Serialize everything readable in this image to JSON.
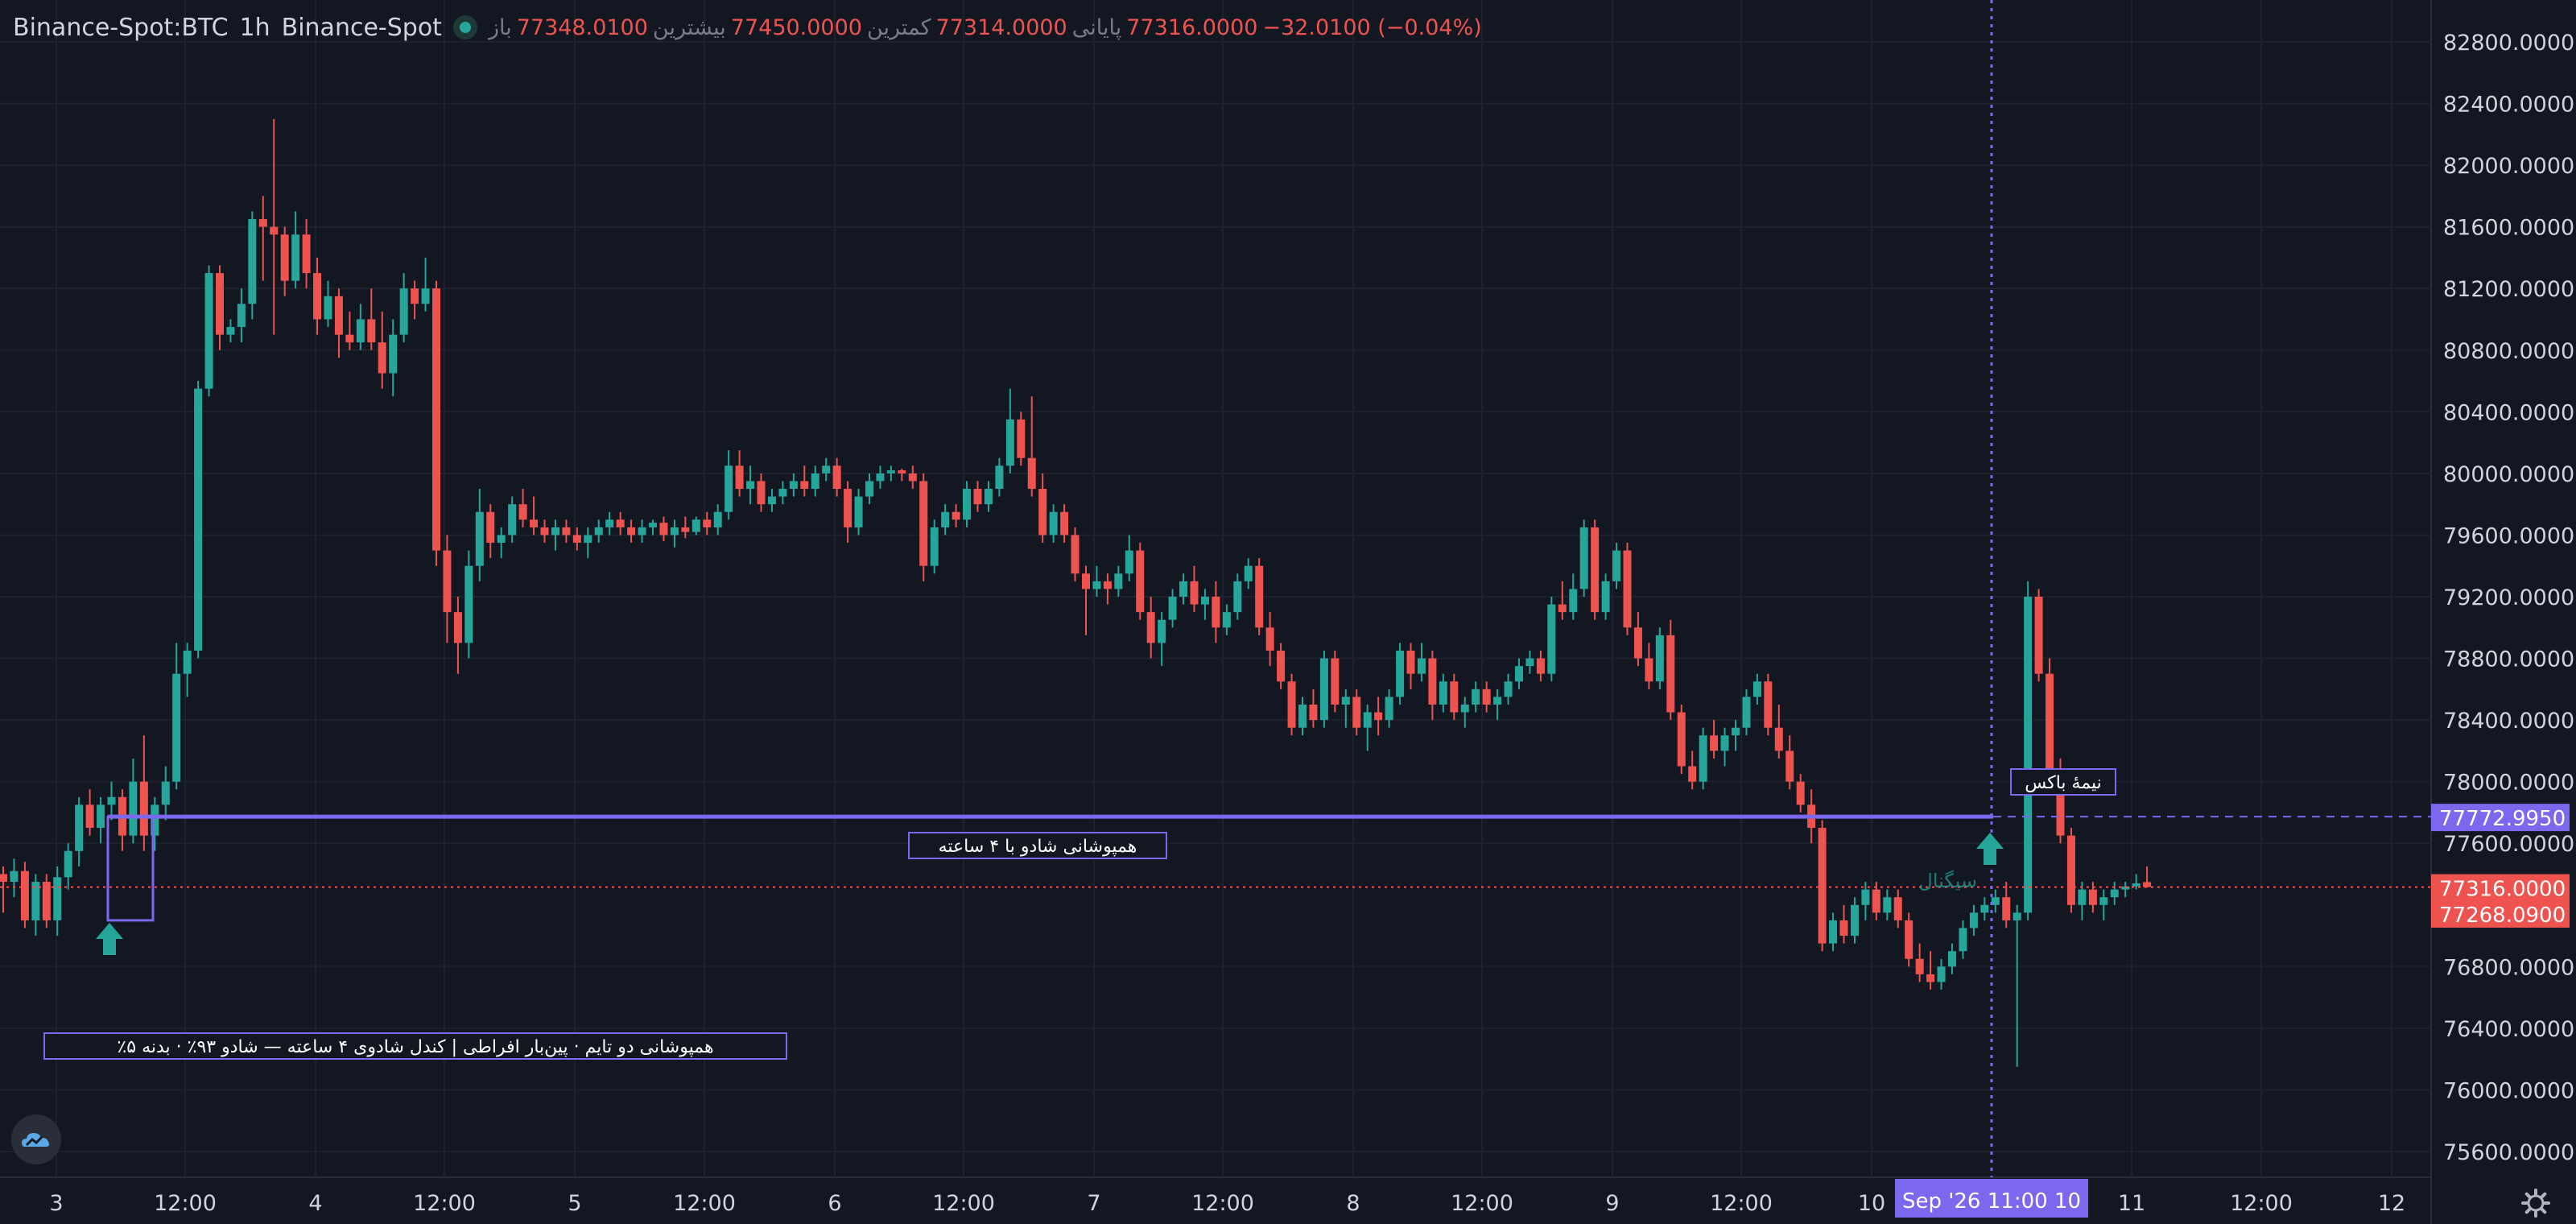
{
  "header": {
    "symbol": "Binance-Spot:BTC",
    "interval": "1h",
    "exchange": "Binance-Spot",
    "ohlc": {
      "open_label": "باز",
      "open": "77348.0100",
      "high_label": "بیشترین",
      "high": "77450.0000",
      "low_label": "کمترین",
      "low": "77314.0000",
      "close_label": "پایانی",
      "close": "77316.0000",
      "change": "−32.0100 (−0.04%)"
    }
  },
  "price_axis": {
    "ticks": [
      "82800.0000",
      "82400.0000",
      "82000.0000",
      "81600.0000",
      "81200.0000",
      "80800.0000",
      "80400.0000",
      "80000.0000",
      "79600.0000",
      "79200.0000",
      "78800.0000",
      "78400.0000",
      "78000.0000",
      "77600.0000",
      "76800.0000",
      "76400.0000",
      "76000.0000",
      "75600.0000"
    ],
    "level_tag": "77772.9950",
    "close_tag": "77316.0000",
    "low_tag": "77268.0900"
  },
  "time_axis": {
    "labels": [
      "3",
      "12:00",
      "4",
      "12:00",
      "5",
      "12:00",
      "6",
      "12:00",
      "7",
      "12:00",
      "8",
      "12:00",
      "9",
      "12:00",
      "10",
      "11",
      "12:00",
      "12"
    ],
    "crosshair_label": "Sep '26   11:00 10"
  },
  "annotations": {
    "half_box": "نیمهٔ باکس",
    "overlap_line": "همپوشانی شادو با ۴ ساعته",
    "bottom_note": "٪همپوشانی دو تایم · پین‌بار افراطی | کندل شادوی ۴ ساعته — شادو ۹۳٪ · بدنه ۵",
    "arrow_label": "سیگنال"
  },
  "colors": {
    "background": "#131722",
    "grid": "#1e222d",
    "up": "#26a69a",
    "down": "#ef5350",
    "level_line": "#7b68ee",
    "text": "#d1d4dc",
    "muted": "#787b86"
  },
  "icons": {
    "logo": "cloud-logo-icon",
    "settings": "gear-icon",
    "signal": "arrow-up-icon"
  },
  "chart_data": {
    "type": "candlestick",
    "title": "",
    "xlabel": "",
    "ylabel": "",
    "ylim": [
      75400,
      83000
    ],
    "interval": "1h",
    "x_start": "2026-09-02 21:00",
    "level": 77772.995,
    "last_close": 77316,
    "grid": true,
    "ohlc": [
      [
        77400,
        77450,
        77150,
        77350
      ],
      [
        77350,
        77500,
        77250,
        77420
      ],
      [
        77420,
        77480,
        77050,
        77100
      ],
      [
        77100,
        77400,
        77000,
        77350
      ],
      [
        77350,
        77400,
        77050,
        77100
      ],
      [
        77100,
        77450,
        77000,
        77380
      ],
      [
        77380,
        77600,
        77300,
        77550
      ],
      [
        77550,
        77900,
        77450,
        77850
      ],
      [
        77850,
        77950,
        77650,
        77700
      ],
      [
        77700,
        77900,
        77600,
        77850
      ],
      [
        77850,
        78000,
        77750,
        77900
      ],
      [
        77900,
        77950,
        77550,
        77650
      ],
      [
        77650,
        78150,
        77600,
        78000
      ],
      [
        78000,
        78300,
        77550,
        77650
      ],
      [
        77650,
        77900,
        77550,
        77850
      ],
      [
        77850,
        78100,
        77750,
        78000
      ],
      [
        78000,
        78900,
        77950,
        78700
      ],
      [
        78700,
        78900,
        78550,
        78850
      ],
      [
        78850,
        80600,
        78800,
        80550
      ],
      [
        80550,
        81350,
        80500,
        81300
      ],
      [
        81300,
        81350,
        80800,
        80900
      ],
      [
        80900,
        81000,
        80850,
        80950
      ],
      [
        80950,
        81200,
        80850,
        81100
      ],
      [
        81100,
        81700,
        81000,
        81650
      ],
      [
        81650,
        81800,
        81250,
        81600
      ],
      [
        81600,
        82300,
        80900,
        81550
      ],
      [
        81550,
        81600,
        81150,
        81250
      ],
      [
        81250,
        81700,
        81200,
        81550
      ],
      [
        81550,
        81650,
        81200,
        81300
      ],
      [
        81300,
        81400,
        80900,
        81000
      ],
      [
        81000,
        81250,
        80950,
        81150
      ],
      [
        81150,
        81200,
        80750,
        80900
      ],
      [
        80900,
        81050,
        80800,
        80850
      ],
      [
        80850,
        81100,
        80800,
        81000
      ],
      [
        81000,
        81200,
        80800,
        80850
      ],
      [
        80850,
        81050,
        80550,
        80650
      ],
      [
        80650,
        81000,
        80500,
        80900
      ],
      [
        80900,
        81300,
        80850,
        81200
      ],
      [
        81200,
        81250,
        81000,
        81100
      ],
      [
        81100,
        81400,
        81050,
        81200
      ],
      [
        81200,
        81250,
        79400,
        79500
      ],
      [
        79500,
        79600,
        78900,
        79100
      ],
      [
        79100,
        79200,
        78700,
        78900
      ],
      [
        78900,
        79500,
        78800,
        79400
      ],
      [
        79400,
        79900,
        79300,
        79750
      ],
      [
        79750,
        79800,
        79450,
        79550
      ],
      [
        79550,
        79650,
        79450,
        79600
      ],
      [
        79600,
        79850,
        79550,
        79800
      ],
      [
        79800,
        79900,
        79650,
        79700
      ],
      [
        79700,
        79850,
        79600,
        79650
      ],
      [
        79650,
        79700,
        79550,
        79600
      ],
      [
        79600,
        79700,
        79500,
        79650
      ],
      [
        79650,
        79700,
        79550,
        79600
      ],
      [
        79600,
        79650,
        79500,
        79550
      ],
      [
        79550,
        79650,
        79450,
        79600
      ],
      [
        79600,
        79700,
        79550,
        79650
      ],
      [
        79650,
        79750,
        79600,
        79700
      ],
      [
        79700,
        79750,
        79600,
        79650
      ],
      [
        79650,
        79700,
        79550,
        79600
      ],
      [
        79600,
        79700,
        79550,
        79650
      ],
      [
        79650,
        79700,
        79600,
        79680
      ],
      [
        79680,
        79720,
        79560,
        79600
      ],
      [
        79600,
        79700,
        79520,
        79650
      ],
      [
        79650,
        79720,
        79580,
        79620
      ],
      [
        79620,
        79720,
        79600,
        79700
      ],
      [
        79700,
        79750,
        79600,
        79650
      ],
      [
        79650,
        79800,
        79600,
        79750
      ],
      [
        79750,
        80150,
        79700,
        80050
      ],
      [
        80050,
        80150,
        79850,
        79900
      ],
      [
        79900,
        80050,
        79800,
        79950
      ],
      [
        79950,
        80000,
        79750,
        79800
      ],
      [
        79800,
        79900,
        79750,
        79850
      ],
      [
        79850,
        79950,
        79800,
        79900
      ],
      [
        79900,
        80000,
        79850,
        79950
      ],
      [
        79950,
        80050,
        79850,
        79900
      ],
      [
        79900,
        80050,
        79850,
        80000
      ],
      [
        80000,
        80100,
        79950,
        80050
      ],
      [
        80050,
        80100,
        79850,
        79900
      ],
      [
        79900,
        79950,
        79550,
        79650
      ],
      [
        79650,
        79900,
        79600,
        79850
      ],
      [
        79850,
        80000,
        79800,
        79950
      ],
      [
        79950,
        80050,
        79900,
        80000
      ],
      [
        80000,
        80050,
        79950,
        80020
      ],
      [
        80020,
        80030,
        79950,
        80000
      ],
      [
        80000,
        80050,
        79900,
        79950
      ],
      [
        79950,
        80000,
        79300,
        79400
      ],
      [
        79400,
        79700,
        79350,
        79650
      ],
      [
        79650,
        79800,
        79600,
        79750
      ],
      [
        79750,
        79800,
        79650,
        79700
      ],
      [
        79700,
        79950,
        79650,
        79900
      ],
      [
        79900,
        79950,
        79750,
        79800
      ],
      [
        79800,
        79950,
        79750,
        79900
      ],
      [
        79900,
        80100,
        79850,
        80050
      ],
      [
        80050,
        80550,
        80000,
        80350
      ],
      [
        80350,
        80400,
        80050,
        80100
      ],
      [
        80100,
        80500,
        79850,
        79900
      ],
      [
        79900,
        80000,
        79550,
        79600
      ],
      [
        79600,
        79800,
        79550,
        79750
      ],
      [
        79750,
        79800,
        79550,
        79600
      ],
      [
        79600,
        79650,
        79300,
        79350
      ],
      [
        79350,
        79400,
        78950,
        79250
      ],
      [
        79250,
        79400,
        79200,
        79300
      ],
      [
        79300,
        79350,
        79150,
        79250
      ],
      [
        79250,
        79400,
        79200,
        79350
      ],
      [
        79350,
        79600,
        79300,
        79500
      ],
      [
        79500,
        79550,
        79050,
        79100
      ],
      [
        79100,
        79200,
        78800,
        78900
      ],
      [
        78900,
        79100,
        78750,
        79050
      ],
      [
        79050,
        79250,
        79000,
        79200
      ],
      [
        79200,
        79350,
        79150,
        79300
      ],
      [
        79300,
        79400,
        79100,
        79150
      ],
      [
        79150,
        79250,
        79050,
        79200
      ],
      [
        79200,
        79300,
        78900,
        79000
      ],
      [
        79000,
        79150,
        78950,
        79100
      ],
      [
        79100,
        79350,
        79050,
        79300
      ],
      [
        79300,
        79450,
        79250,
        79400
      ],
      [
        79400,
        79450,
        78950,
        79000
      ],
      [
        79000,
        79100,
        78750,
        78850
      ],
      [
        78850,
        78900,
        78600,
        78650
      ],
      [
        78650,
        78700,
        78300,
        78350
      ],
      [
        78350,
        78550,
        78300,
        78500
      ],
      [
        78500,
        78600,
        78350,
        78400
      ],
      [
        78400,
        78850,
        78350,
        78800
      ],
      [
        78800,
        78850,
        78450,
        78500
      ],
      [
        78500,
        78600,
        78350,
        78550
      ],
      [
        78550,
        78600,
        78300,
        78350
      ],
      [
        78350,
        78500,
        78200,
        78450
      ],
      [
        78450,
        78550,
        78300,
        78400
      ],
      [
        78400,
        78600,
        78350,
        78550
      ],
      [
        78550,
        78900,
        78500,
        78850
      ],
      [
        78850,
        78900,
        78600,
        78700
      ],
      [
        78700,
        78900,
        78650,
        78800
      ],
      [
        78800,
        78850,
        78400,
        78500
      ],
      [
        78500,
        78700,
        78450,
        78650
      ],
      [
        78650,
        78700,
        78400,
        78450
      ],
      [
        78450,
        78550,
        78350,
        78500
      ],
      [
        78500,
        78650,
        78450,
        78600
      ],
      [
        78600,
        78650,
        78450,
        78500
      ],
      [
        78500,
        78600,
        78400,
        78550
      ],
      [
        78550,
        78700,
        78500,
        78650
      ],
      [
        78650,
        78800,
        78600,
        78750
      ],
      [
        78750,
        78850,
        78700,
        78800
      ],
      [
        78800,
        78850,
        78650,
        78700
      ],
      [
        78700,
        79200,
        78650,
        79150
      ],
      [
        79150,
        79300,
        79050,
        79100
      ],
      [
        79100,
        79350,
        79050,
        79250
      ],
      [
        79250,
        79700,
        79200,
        79650
      ],
      [
        79650,
        79700,
        79050,
        79100
      ],
      [
        79100,
        79350,
        79050,
        79300
      ],
      [
        79300,
        79550,
        79250,
        79500
      ],
      [
        79500,
        79550,
        78950,
        79000
      ],
      [
        79000,
        79100,
        78750,
        78800
      ],
      [
        78800,
        78900,
        78600,
        78650
      ],
      [
        78650,
        79000,
        78600,
        78950
      ],
      [
        78950,
        79050,
        78400,
        78450
      ],
      [
        78450,
        78500,
        78050,
        78100
      ],
      [
        78100,
        78200,
        77950,
        78000
      ],
      [
        78000,
        78350,
        77950,
        78300
      ],
      [
        78300,
        78400,
        78150,
        78200
      ],
      [
        78200,
        78350,
        78100,
        78300
      ],
      [
        78300,
        78400,
        78200,
        78350
      ],
      [
        78350,
        78600,
        78300,
        78550
      ],
      [
        78550,
        78700,
        78500,
        78650
      ],
      [
        78650,
        78700,
        78300,
        78350
      ],
      [
        78350,
        78500,
        78150,
        78200
      ],
      [
        78200,
        78300,
        77950,
        78000
      ],
      [
        78000,
        78050,
        77800,
        77850
      ],
      [
        77850,
        77950,
        77600,
        77700
      ],
      [
        77700,
        77750,
        76900,
        76950
      ],
      [
        76950,
        77150,
        76900,
        77100
      ],
      [
        77100,
        77200,
        76950,
        77000
      ],
      [
        77000,
        77250,
        76950,
        77200
      ],
      [
        77200,
        77350,
        77100,
        77300
      ],
      [
        77300,
        77350,
        77100,
        77150
      ],
      [
        77150,
        77300,
        77100,
        77250
      ],
      [
        77250,
        77300,
        77050,
        77100
      ],
      [
        77100,
        77150,
        76800,
        76850
      ],
      [
        76850,
        76950,
        76700,
        76750
      ],
      [
        76750,
        76900,
        76650,
        76700
      ],
      [
        76700,
        76850,
        76650,
        76800
      ],
      [
        76800,
        76950,
        76750,
        76900
      ],
      [
        76900,
        77100,
        76850,
        77050
      ],
      [
        77050,
        77200,
        77000,
        77150
      ],
      [
        77150,
        77250,
        77100,
        77200
      ],
      [
        77200,
        77300,
        77150,
        77250
      ],
      [
        77250,
        77350,
        77050,
        77100
      ],
      [
        77100,
        77200,
        76150,
        77150
      ],
      [
        77150,
        79300,
        77100,
        79200
      ],
      [
        79200,
        79250,
        78650,
        78700
      ],
      [
        78700,
        78800,
        78000,
        78050
      ],
      [
        78050,
        78150,
        77600,
        77650
      ],
      [
        77650,
        77700,
        77150,
        77200
      ],
      [
        77200,
        77350,
        77100,
        77300
      ],
      [
        77300,
        77350,
        77150,
        77200
      ],
      [
        77200,
        77300,
        77100,
        77250
      ],
      [
        77250,
        77350,
        77200,
        77300
      ],
      [
        77300,
        77350,
        77250,
        77320
      ],
      [
        77320,
        77400,
        77300,
        77340
      ],
      [
        77348,
        77450,
        77314,
        77316
      ]
    ]
  }
}
